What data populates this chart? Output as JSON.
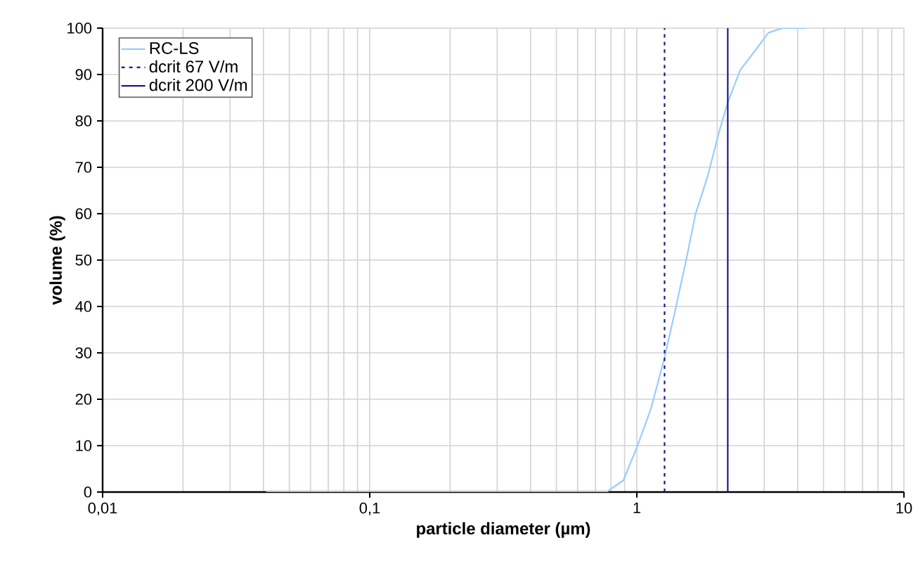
{
  "chart_data": {
    "type": "line",
    "xlabel": "particle diameter (µm)",
    "ylabel": "volume (%)",
    "log": "x",
    "grid": true,
    "legend": "top left",
    "marker": "none",
    "xlim": [
      0.01,
      10
    ],
    "xticks": [
      {
        "value": 0.01,
        "label": "0,01"
      },
      {
        "value": 0.1,
        "label": "0,1"
      },
      1,
      10
    ],
    "ylim": [
      0,
      100
    ],
    "yticks": [
      0,
      10,
      20,
      30,
      40,
      50,
      60,
      70,
      80,
      90,
      100
    ],
    "series": [
      {
        "name": "RC-LS",
        "color": "#99ccff",
        "line_style": "solid",
        "x": [
          0.041,
          0.77,
          0.89,
          1.0,
          1.13,
          1.27,
          1.39,
          1.53,
          1.66,
          1.84,
          2.04,
          2.19,
          2.44,
          2.76,
          3.11,
          3.51,
          4.3
        ],
        "values": [
          0,
          0,
          2.5,
          9.6,
          18,
          29,
          39,
          50,
          60,
          68,
          78,
          84,
          91,
          95,
          99,
          100,
          100
        ]
      },
      {
        "name": "dcrit 67 V/m",
        "color": "#1a1a8c",
        "line_style": "dashed",
        "x": [
          1.27,
          1.27
        ],
        "values": [
          0,
          100
        ]
      },
      {
        "name": "dcrit 200 V/m",
        "color": "#1a1a8c",
        "line_style": "solid",
        "x": [
          2.19,
          2.19
        ],
        "values": [
          0,
          100
        ]
      }
    ]
  }
}
